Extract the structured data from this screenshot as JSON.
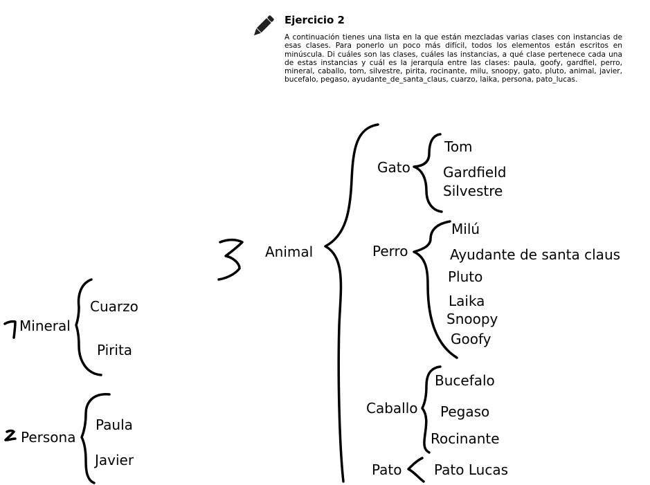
{
  "exercise": {
    "title": "Ejercicio 2",
    "text": "A continuación tienes una lista en la que están mezcladas varias clases con instancias de esas clases. Para ponerlo un poco más difícil, todos los elementos están escritos en minúscula. Di cuáles son las clases, cuáles las instancias, a qué clase pertenece cada una de estas instancias y cuál es la jerarquía entre las clases: paula, goofy, gardfiel, perro, mineral, caballo, tom, silvestre, pirita, rocinante, milu, snoopy, gato, pluto, animal, javier, bucefalo, pegaso, ayudante_de_santa_claus, cuarzo, laika, persona, pato_lucas."
  },
  "pencil_icon": "pencil-icon",
  "answer": {
    "mineral": {
      "mark": "1",
      "class": "Mineral",
      "instances": [
        "Cuarzo",
        "Pirita"
      ]
    },
    "persona": {
      "mark": "2",
      "class": "Persona",
      "instances": [
        "Paula",
        "Javier"
      ]
    },
    "animal": {
      "mark": "3",
      "class": "Animal",
      "subclasses": {
        "gato": {
          "class": "Gato",
          "instances": [
            "Tom",
            "Gardfield",
            "Silvestre"
          ]
        },
        "perro": {
          "class": "Perro",
          "instances": [
            "Milú",
            "Ayudante de santa claus",
            "Pluto",
            "Laika",
            "Snoopy",
            "Goofy"
          ]
        },
        "caballo": {
          "class": "Caballo",
          "instances": [
            "Bucefalo",
            "Pegaso",
            "Rocinante"
          ]
        },
        "pato": {
          "class": "Pato",
          "instances": [
            "Pato Lucas"
          ]
        }
      }
    }
  },
  "colors": {
    "ink": "#000000",
    "background": "#ffffff"
  }
}
